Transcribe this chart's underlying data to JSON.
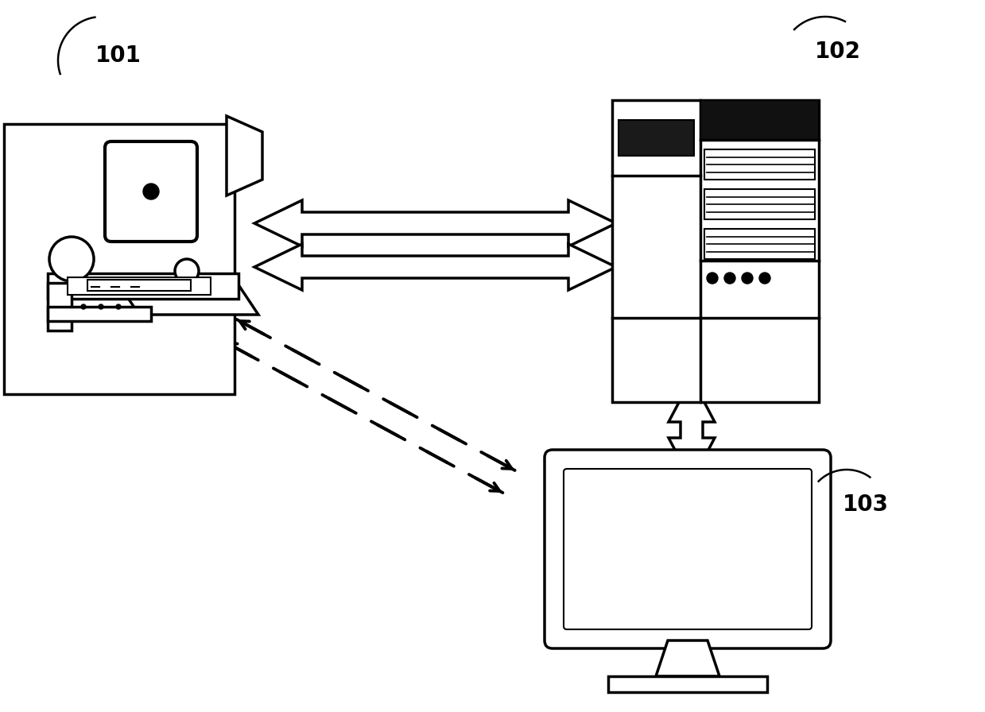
{
  "background_color": "#ffffff",
  "black": "#000000",
  "label_101": "101",
  "label_102": "102",
  "label_103": "103",
  "label_fontsize": 20,
  "label_fontweight": "bold",
  "figsize": [
    12.39,
    8.96
  ],
  "dpi": 100
}
